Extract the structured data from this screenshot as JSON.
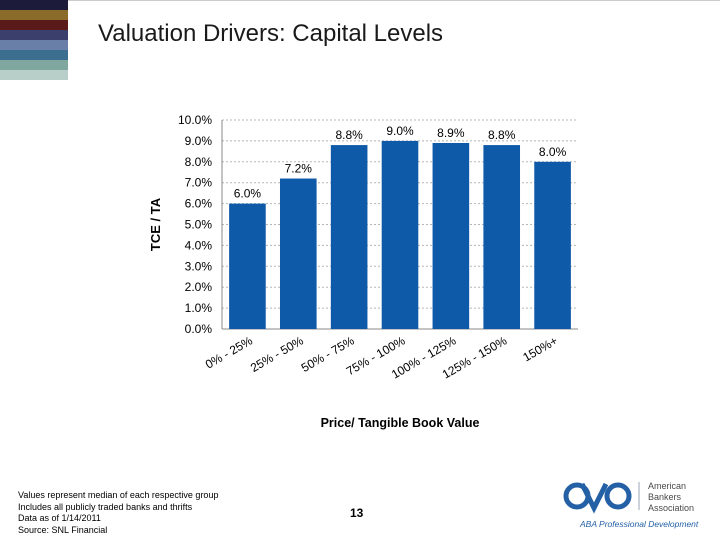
{
  "slide": {
    "title": "Valuation Drivers: Capital Levels",
    "page_number": "13",
    "footnotes": [
      "Values represent median of each respective group",
      "Includes all publicly traded banks and thrifts",
      "Data as of 1/14/2011",
      "Source: SNL Financial"
    ],
    "stripe_colors": [
      "#1d1b3a",
      "#8b6b2a",
      "#5a1a1a",
      "#3b3f6b",
      "#6a7fa8",
      "#3c6e8f",
      "#7fa7a0",
      "#b7cfc8"
    ]
  },
  "logo": {
    "line1": "American",
    "line2": "Bankers",
    "line3": "Association",
    "tagline": "ABA Professional Development",
    "color": "#2360a5"
  },
  "chart_data": {
    "type": "bar",
    "categories": [
      "0% - 25%",
      "25% - 50%",
      "50% - 75%",
      "75% - 100%",
      "100% - 125%",
      "125% - 150%",
      "150%+"
    ],
    "values": [
      6.0,
      7.2,
      8.8,
      9.0,
      8.9,
      8.8,
      8.0
    ],
    "data_labels": [
      "6.0%",
      "7.2%",
      "8.8%",
      "9.0%",
      "8.9%",
      "8.8%",
      "8.0%"
    ],
    "xlabel": "Price/ Tangible Book Value",
    "ylabel": "TCE / TA",
    "ylim": [
      0,
      10
    ],
    "yticks": [
      0,
      1,
      2,
      3,
      4,
      5,
      6,
      7,
      8,
      9,
      10
    ],
    "ytick_labels": [
      "0.0%",
      "1.0%",
      "2.0%",
      "3.0%",
      "4.0%",
      "5.0%",
      "6.0%",
      "7.0%",
      "8.0%",
      "9.0%",
      "10.0%"
    ],
    "grid": true,
    "bar_color": "#0f5aa8"
  }
}
